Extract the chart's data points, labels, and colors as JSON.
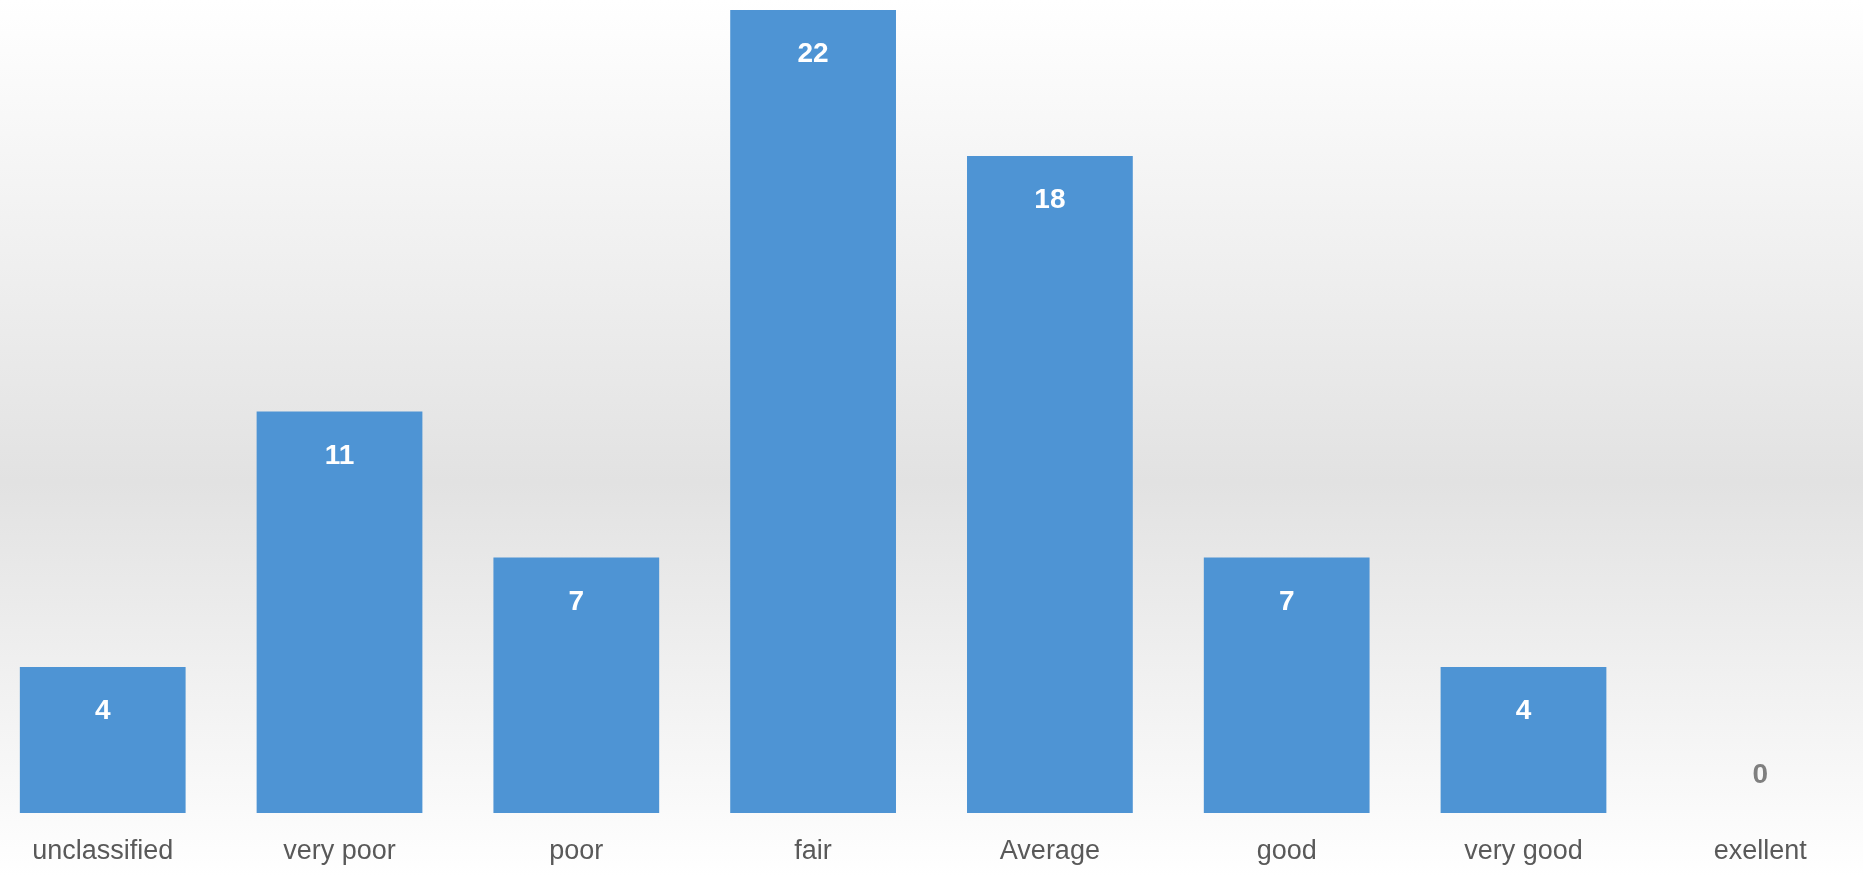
{
  "chart_data": {
    "type": "bar",
    "categories": [
      "unclassified",
      "very poor",
      "poor",
      "fair",
      "Average",
      "good",
      "very good",
      "exellent"
    ],
    "values": [
      4,
      11,
      7,
      22,
      18,
      7,
      4,
      0
    ],
    "color": "#4e94d4",
    "data_labels": true
  }
}
